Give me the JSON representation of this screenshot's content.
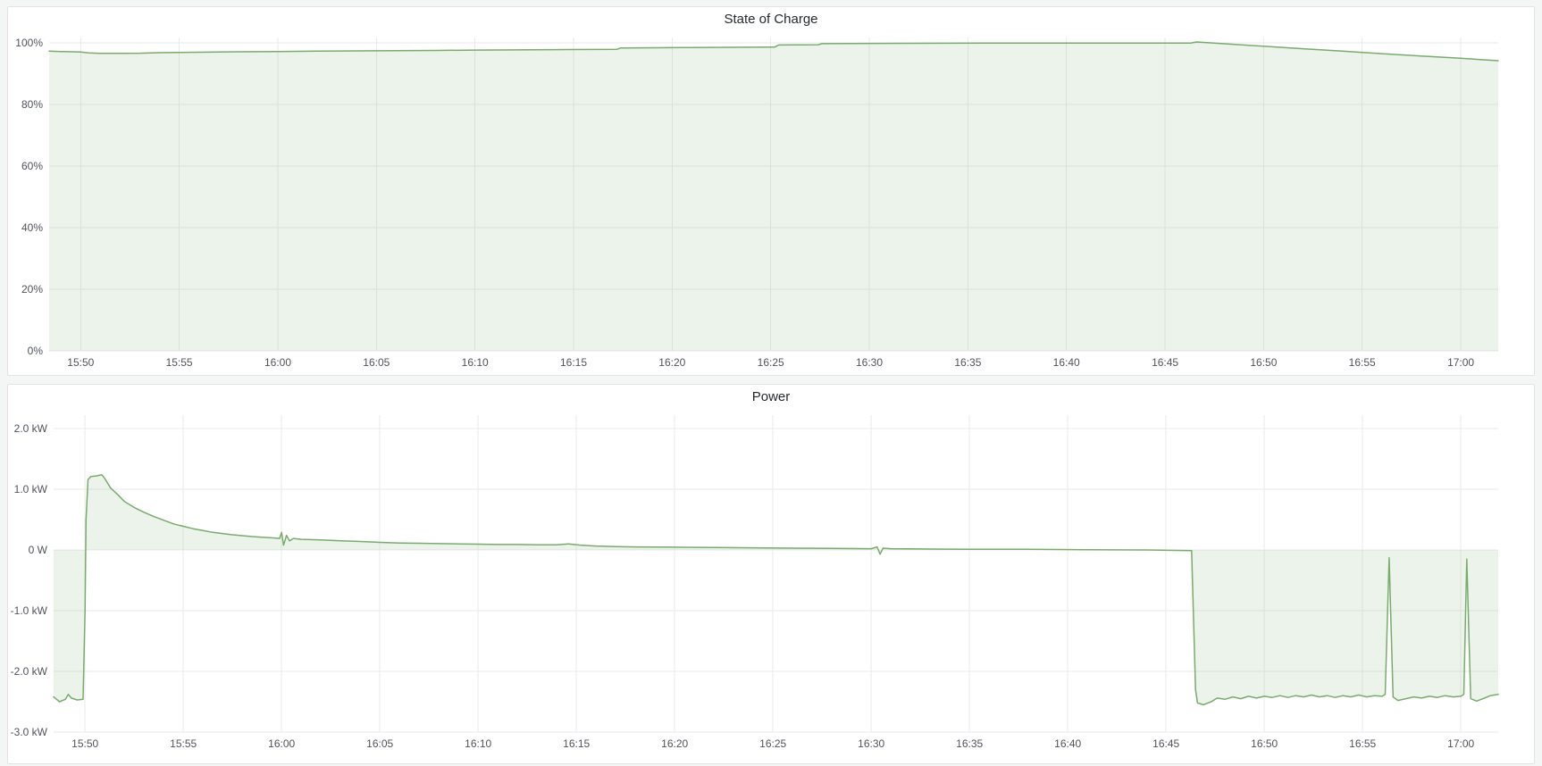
{
  "chart_data": [
    {
      "type": "area",
      "title": "State of Charge",
      "line_color": "#79ab6d",
      "fill_color": "rgba(121,171,109,0.14)",
      "x_unit": "time of day (HH:MM), stored below as minutes after 15:00",
      "x_domain_minutes": [
        48.4,
        121.9
      ],
      "x_range_labels": [
        "15:48",
        "17:02"
      ],
      "ylim": [
        0,
        104
      ],
      "y_unit": "percent",
      "fill_baseline": 0,
      "grid": true,
      "legend": "none",
      "x_ticks": [
        {
          "minutes": 50,
          "label": "15:50"
        },
        {
          "minutes": 55,
          "label": "15:55"
        },
        {
          "minutes": 60,
          "label": "16:00"
        },
        {
          "minutes": 65,
          "label": "16:05"
        },
        {
          "minutes": 70,
          "label": "16:10"
        },
        {
          "minutes": 75,
          "label": "16:15"
        },
        {
          "minutes": 80,
          "label": "16:20"
        },
        {
          "minutes": 85,
          "label": "16:25"
        },
        {
          "minutes": 90,
          "label": "16:30"
        },
        {
          "minutes": 95,
          "label": "16:35"
        },
        {
          "minutes": 100,
          "label": "16:40"
        },
        {
          "minutes": 105,
          "label": "16:45"
        },
        {
          "minutes": 110,
          "label": "16:50"
        },
        {
          "minutes": 115,
          "label": "16:55"
        },
        {
          "minutes": 120,
          "label": "17:00"
        }
      ],
      "y_ticks": [
        {
          "value": 0,
          "label": "0%"
        },
        {
          "value": 20,
          "label": "20%"
        },
        {
          "value": 40,
          "label": "40%"
        },
        {
          "value": 60,
          "label": "60%"
        },
        {
          "value": 80,
          "label": "80%"
        },
        {
          "value": 100,
          "label": "100%"
        }
      ],
      "points": [
        [
          48.4,
          97.3
        ],
        [
          49,
          97.2
        ],
        [
          49.6,
          97.1
        ],
        [
          50,
          97.0
        ],
        [
          50.4,
          96.75
        ],
        [
          51,
          96.6
        ],
        [
          52,
          96.6
        ],
        [
          53,
          96.65
        ],
        [
          54,
          96.8
        ],
        [
          55,
          96.9
        ],
        [
          56,
          96.95
        ],
        [
          57,
          97.0
        ],
        [
          58,
          97.1
        ],
        [
          60,
          97.2
        ],
        [
          62,
          97.3
        ],
        [
          64,
          97.4
        ],
        [
          66,
          97.45
        ],
        [
          68,
          97.55
        ],
        [
          70,
          97.65
        ],
        [
          72,
          97.7
        ],
        [
          74,
          97.8
        ],
        [
          76,
          97.85
        ],
        [
          77.2,
          97.9
        ],
        [
          77.4,
          98.35
        ],
        [
          79,
          98.4
        ],
        [
          81,
          98.5
        ],
        [
          83,
          98.55
        ],
        [
          85,
          98.6
        ],
        [
          85.2,
          98.65
        ],
        [
          85.4,
          99.3
        ],
        [
          86.5,
          99.35
        ],
        [
          87.4,
          99.4
        ],
        [
          87.6,
          99.75
        ],
        [
          89,
          99.8
        ],
        [
          92,
          99.85
        ],
        [
          96,
          99.9
        ],
        [
          100,
          99.9
        ],
        [
          104,
          99.95
        ],
        [
          106.3,
          99.95
        ],
        [
          106.6,
          100.3
        ],
        [
          108,
          99.7
        ],
        [
          110,
          98.9
        ],
        [
          112,
          98.1
        ],
        [
          114,
          97.3
        ],
        [
          116,
          96.5
        ],
        [
          118,
          95.7
        ],
        [
          120,
          95.0
        ],
        [
          121.9,
          94.2
        ]
      ]
    },
    {
      "type": "area",
      "title": "Power",
      "line_color": "#79ab6d",
      "fill_color": "rgba(121,171,109,0.14)",
      "x_unit": "time of day (HH:MM), stored below as minutes after 15:00",
      "x_domain_minutes": [
        48.4,
        121.9
      ],
      "x_range_labels": [
        "15:48",
        "17:02"
      ],
      "ylim": [
        -3.0,
        2.2
      ],
      "y_unit": "kW",
      "fill_baseline": 0,
      "grid": true,
      "legend": "none",
      "x_ticks": [
        {
          "minutes": 50,
          "label": "15:50"
        },
        {
          "minutes": 55,
          "label": "15:55"
        },
        {
          "minutes": 60,
          "label": "16:00"
        },
        {
          "minutes": 65,
          "label": "16:05"
        },
        {
          "minutes": 70,
          "label": "16:10"
        },
        {
          "minutes": 75,
          "label": "16:15"
        },
        {
          "minutes": 80,
          "label": "16:20"
        },
        {
          "minutes": 85,
          "label": "16:25"
        },
        {
          "minutes": 90,
          "label": "16:30"
        },
        {
          "minutes": 95,
          "label": "16:35"
        },
        {
          "minutes": 100,
          "label": "16:40"
        },
        {
          "minutes": 105,
          "label": "16:45"
        },
        {
          "minutes": 110,
          "label": "16:50"
        },
        {
          "minutes": 115,
          "label": "16:55"
        },
        {
          "minutes": 120,
          "label": "17:00"
        }
      ],
      "y_ticks": [
        {
          "value": 2.0,
          "label": "2.0 kW"
        },
        {
          "value": 1.0,
          "label": "1.0 kW"
        },
        {
          "value": 0,
          "label": "0 W"
        },
        {
          "value": -1.0,
          "label": "-1.0 kW"
        },
        {
          "value": -2.0,
          "label": "-2.0 kW"
        },
        {
          "value": -3.0,
          "label": "-3.0 kW"
        }
      ],
      "points": [
        [
          48.4,
          -2.42
        ],
        [
          48.7,
          -2.5
        ],
        [
          49.0,
          -2.46
        ],
        [
          49.15,
          -2.38
        ],
        [
          49.3,
          -2.44
        ],
        [
          49.6,
          -2.47
        ],
        [
          49.9,
          -2.46
        ],
        [
          50.0,
          -1.0
        ],
        [
          50.05,
          0.5
        ],
        [
          50.15,
          1.16
        ],
        [
          50.3,
          1.21
        ],
        [
          50.6,
          1.22
        ],
        [
          50.85,
          1.24
        ],
        [
          51.0,
          1.18
        ],
        [
          51.3,
          1.02
        ],
        [
          51.7,
          0.9
        ],
        [
          52.0,
          0.8
        ],
        [
          52.5,
          0.7
        ],
        [
          53.0,
          0.62
        ],
        [
          53.5,
          0.55
        ],
        [
          54.0,
          0.49
        ],
        [
          54.5,
          0.43
        ],
        [
          55.0,
          0.39
        ],
        [
          55.5,
          0.35
        ],
        [
          56.0,
          0.32
        ],
        [
          56.5,
          0.29
        ],
        [
          57.0,
          0.27
        ],
        [
          57.5,
          0.25
        ],
        [
          58.0,
          0.235
        ],
        [
          58.5,
          0.22
        ],
        [
          59.0,
          0.21
        ],
        [
          59.5,
          0.2
        ],
        [
          59.9,
          0.19
        ],
        [
          60.0,
          0.29
        ],
        [
          60.1,
          0.08
        ],
        [
          60.25,
          0.24
        ],
        [
          60.4,
          0.15
        ],
        [
          60.6,
          0.19
        ],
        [
          61,
          0.175
        ],
        [
          62,
          0.165
        ],
        [
          63,
          0.15
        ],
        [
          64,
          0.14
        ],
        [
          65,
          0.125
        ],
        [
          66,
          0.115
        ],
        [
          67,
          0.11
        ],
        [
          68,
          0.105
        ],
        [
          69,
          0.1
        ],
        [
          70,
          0.095
        ],
        [
          71,
          0.09
        ],
        [
          72,
          0.09
        ],
        [
          73,
          0.085
        ],
        [
          74,
          0.085
        ],
        [
          74.6,
          0.1
        ],
        [
          75.2,
          0.08
        ],
        [
          76,
          0.065
        ],
        [
          77,
          0.055
        ],
        [
          78,
          0.05
        ],
        [
          80,
          0.045
        ],
        [
          82,
          0.04
        ],
        [
          84,
          0.035
        ],
        [
          86,
          0.03
        ],
        [
          88,
          0.025
        ],
        [
          90,
          0.02
        ],
        [
          90.3,
          0.05
        ],
        [
          90.45,
          -0.07
        ],
        [
          90.6,
          0.03
        ],
        [
          91,
          0.02
        ],
        [
          93,
          0.015
        ],
        [
          95,
          0.012
        ],
        [
          98,
          0.01
        ],
        [
          101,
          0.005
        ],
        [
          104,
          0.0
        ],
        [
          106.3,
          -0.01
        ],
        [
          106.5,
          -2.3
        ],
        [
          106.6,
          -2.52
        ],
        [
          106.9,
          -2.55
        ],
        [
          107.3,
          -2.5
        ],
        [
          107.6,
          -2.44
        ],
        [
          108,
          -2.46
        ],
        [
          108.4,
          -2.42
        ],
        [
          108.8,
          -2.45
        ],
        [
          109.2,
          -2.41
        ],
        [
          109.6,
          -2.44
        ],
        [
          110,
          -2.41
        ],
        [
          110.4,
          -2.43
        ],
        [
          110.8,
          -2.4
        ],
        [
          111.2,
          -2.43
        ],
        [
          111.6,
          -2.4
        ],
        [
          112,
          -2.42
        ],
        [
          112.4,
          -2.39
        ],
        [
          112.8,
          -2.42
        ],
        [
          113.2,
          -2.4
        ],
        [
          113.6,
          -2.43
        ],
        [
          114,
          -2.4
        ],
        [
          114.4,
          -2.42
        ],
        [
          114.8,
          -2.39
        ],
        [
          115.2,
          -2.42
        ],
        [
          115.6,
          -2.4
        ],
        [
          116.0,
          -2.41
        ],
        [
          116.15,
          -2.38
        ],
        [
          116.35,
          -0.13
        ],
        [
          116.55,
          -2.42
        ],
        [
          116.8,
          -2.48
        ],
        [
          117.2,
          -2.45
        ],
        [
          117.6,
          -2.42
        ],
        [
          118,
          -2.44
        ],
        [
          118.4,
          -2.41
        ],
        [
          118.8,
          -2.43
        ],
        [
          119.2,
          -2.4
        ],
        [
          119.6,
          -2.42
        ],
        [
          120.0,
          -2.41
        ],
        [
          120.15,
          -2.38
        ],
        [
          120.3,
          -0.15
        ],
        [
          120.5,
          -2.45
        ],
        [
          120.8,
          -2.49
        ],
        [
          121.2,
          -2.44
        ],
        [
          121.5,
          -2.4
        ],
        [
          121.9,
          -2.38
        ]
      ]
    }
  ]
}
